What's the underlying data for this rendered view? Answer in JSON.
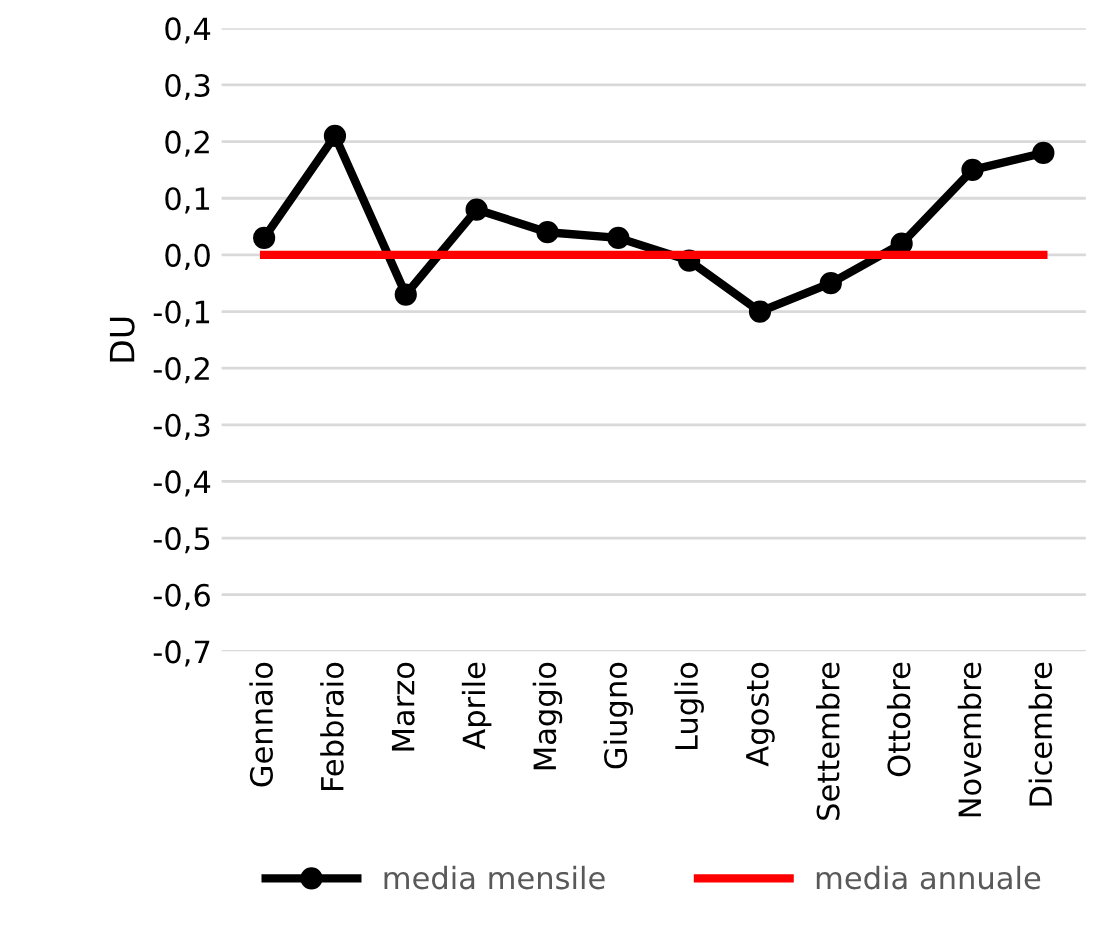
{
  "chart_data": {
    "type": "line",
    "ylabel": "DU",
    "categories": [
      "Gennaio",
      "Febbraio",
      "Marzo",
      "Aprile",
      "Maggio",
      "Giugno",
      "Luglio",
      "Agosto",
      "Settembre",
      "Ottobre",
      "Novembre",
      "Dicembre"
    ],
    "series": [
      {
        "name": "media mensile",
        "color": "#000000",
        "marker": "circle",
        "values": [
          0.03,
          0.21,
          -0.07,
          0.08,
          0.04,
          0.03,
          -0.01,
          -0.1,
          -0.05,
          0.02,
          0.15,
          0.18
        ]
      },
      {
        "name": "media annuale",
        "color": "#ff0000",
        "marker": "none",
        "values": [
          0,
          0,
          0,
          0,
          0,
          0,
          0,
          0,
          0,
          0,
          0,
          0
        ]
      }
    ],
    "ylim": [
      -0.7,
      0.4
    ],
    "yticks": [
      {
        "value": -0.7,
        "label": "-0,7"
      },
      {
        "value": -0.6,
        "label": "-0,6"
      },
      {
        "value": -0.5,
        "label": "-0,5"
      },
      {
        "value": -0.4,
        "label": "-0,4"
      },
      {
        "value": -0.3,
        "label": "-0,3"
      },
      {
        "value": -0.2,
        "label": "-0,2"
      },
      {
        "value": -0.1,
        "label": "-0,1"
      },
      {
        "value": 0,
        "label": "0,0"
      },
      {
        "value": 0.1,
        "label": "0,1"
      },
      {
        "value": 0.2,
        "label": "0,2"
      },
      {
        "value": 0.3,
        "label": "0,3"
      },
      {
        "value": 0.4,
        "label": "0,4"
      }
    ],
    "grid": "y",
    "legend": "bottom",
    "line_style": "solid"
  }
}
